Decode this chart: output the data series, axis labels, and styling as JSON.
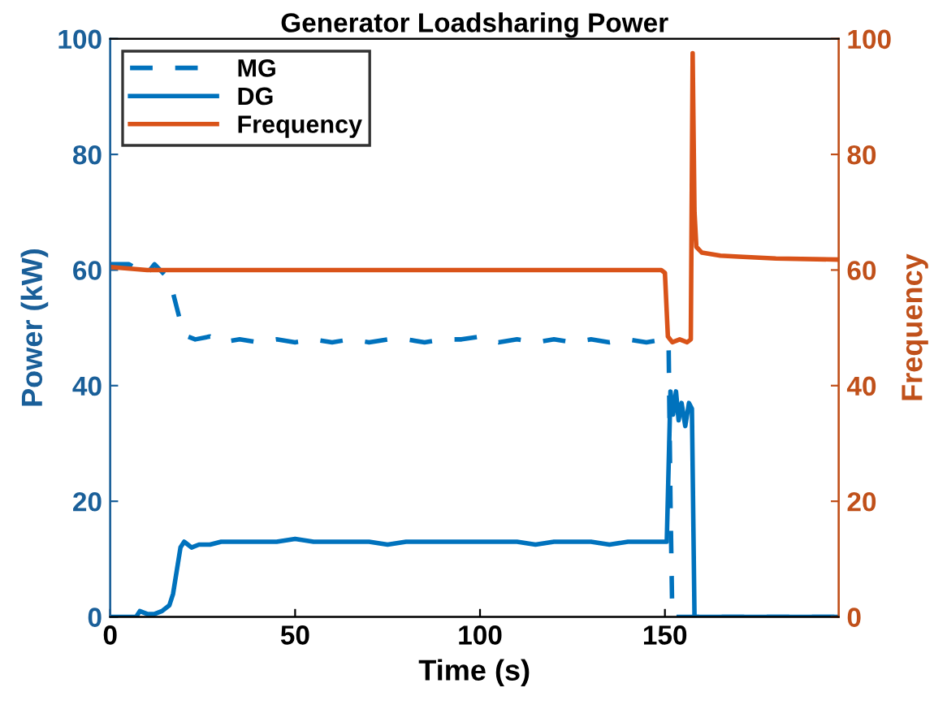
{
  "chart_data": {
    "type": "line",
    "title": "Generator Loadsharing Power",
    "xlabel": "Time (s)",
    "ylabel": "Power (kW)",
    "y2label": "Frequency",
    "xlim": [
      0,
      197
    ],
    "xticks": [
      0,
      50,
      100,
      150
    ],
    "ylim": [
      0,
      100
    ],
    "yticks": [
      0,
      20,
      40,
      60,
      80,
      100
    ],
    "y2lim": [
      0,
      100
    ],
    "y2ticks": [
      0,
      20,
      40,
      60,
      80,
      100
    ],
    "grid": false,
    "legend": "top left",
    "marker": "none",
    "series": [
      {
        "name": "MG",
        "color": "#0072bd",
        "line_style": "dashed",
        "x": [
          0,
          5,
          8,
          9.5,
          12,
          15,
          17,
          19,
          21,
          23,
          27,
          30,
          35,
          40,
          45,
          50,
          55,
          60,
          65,
          70,
          75,
          80,
          85,
          90,
          95,
          100,
          105,
          110,
          115,
          120,
          125,
          130,
          135,
          140,
          145,
          150,
          151,
          151.5,
          152,
          197
        ],
        "values": [
          61,
          61,
          60,
          59,
          61,
          59,
          56,
          51,
          48.5,
          48,
          48.5,
          47.5,
          48,
          47.5,
          48,
          47.5,
          48,
          47.5,
          48,
          47.5,
          48,
          48,
          47.5,
          48,
          48,
          48.5,
          47.5,
          48,
          47.5,
          48,
          47.5,
          48,
          47.5,
          48,
          47.5,
          48,
          47,
          20,
          0,
          0
        ]
      },
      {
        "name": "DG",
        "color": "#0072bd",
        "line_style": "solid",
        "x": [
          0,
          7,
          8,
          10,
          12,
          14,
          16,
          17,
          18,
          19,
          20,
          21,
          22,
          24,
          27,
          30,
          35,
          40,
          45,
          50,
          55,
          60,
          65,
          70,
          75,
          80,
          85,
          90,
          95,
          100,
          105,
          110,
          115,
          120,
          125,
          130,
          135,
          140,
          145,
          150,
          150.5,
          151.5,
          152.2,
          153,
          153.7,
          154.5,
          155.5,
          156.5,
          157.3,
          158,
          197
        ],
        "values": [
          0,
          0,
          1,
          0.5,
          0.5,
          1,
          2,
          4,
          8,
          12,
          13,
          12.5,
          12,
          12.5,
          12.5,
          13,
          13,
          13,
          13,
          13.5,
          13,
          13,
          13,
          13,
          12.5,
          13,
          13,
          13,
          13,
          13,
          13,
          13,
          12.5,
          13,
          13,
          13,
          12.5,
          13,
          13,
          13,
          13,
          39,
          35,
          39,
          34,
          37,
          33,
          37,
          36,
          0,
          0
        ]
      },
      {
        "name": "Frequency",
        "color": "#d95319",
        "line_style": "solid",
        "axis": "y2",
        "x": [
          0,
          10,
          50,
          100,
          149,
          150,
          150.8,
          152,
          154,
          156,
          157,
          157.5,
          158,
          158.5,
          160,
          165,
          170,
          180,
          197
        ],
        "values": [
          60.5,
          60,
          60,
          60,
          60,
          59.5,
          48.5,
          47.5,
          48,
          47.5,
          48,
          97.5,
          70,
          64,
          63,
          62.5,
          62.3,
          62,
          61.8
        ]
      }
    ]
  }
}
